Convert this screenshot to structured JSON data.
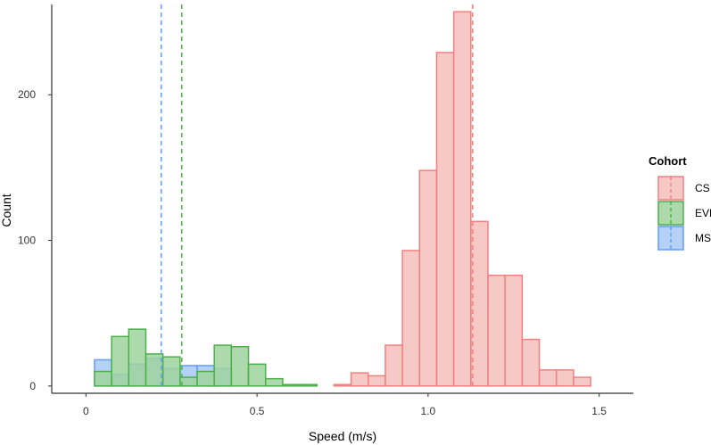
{
  "chart_data": {
    "type": "bar",
    "subtype": "overlaid-histogram",
    "xlabel": "Speed (m/s)",
    "ylabel": "Count",
    "xlim": [
      -0.1,
      1.6
    ],
    "ylim": [
      -5,
      262
    ],
    "xticks": [
      0,
      0.5,
      1,
      1.5
    ],
    "xtick_labels": [
      "0",
      "0.5",
      "1.0",
      "1.5"
    ],
    "yticks": [
      0,
      100,
      200
    ],
    "ytick_labels": [
      "0",
      "100",
      "200"
    ],
    "grid": false,
    "bin_edges": [
      -0.025,
      0.025,
      0.075,
      0.125,
      0.175,
      0.225,
      0.275,
      0.325,
      0.375,
      0.425,
      0.475,
      0.525,
      0.575,
      0.625,
      0.675,
      0.725,
      0.775,
      0.825,
      0.875,
      0.925,
      0.975,
      1.025,
      1.075,
      1.125,
      1.175,
      1.225,
      1.275,
      1.325,
      1.375,
      1.425,
      1.475,
      1.525
    ],
    "series": [
      {
        "name": "MS",
        "color": "#619CFF",
        "fill": "#a9c9f7",
        "counts": [
          0,
          18,
          8,
          15,
          19,
          12,
          14,
          14,
          12,
          0,
          0,
          0,
          0,
          0,
          0,
          0,
          0,
          0,
          0,
          0,
          0,
          0,
          0,
          0,
          0,
          0,
          0,
          0,
          0,
          0
        ],
        "mean": 0.22
      },
      {
        "name": "EVF",
        "color": "#4DAF4A",
        "fill": "#9fd49d",
        "counts": [
          0,
          10,
          34,
          39,
          22,
          20,
          6,
          10,
          28,
          27,
          15,
          5,
          1,
          1,
          0,
          0,
          0,
          0,
          0,
          0,
          0,
          0,
          0,
          0,
          0,
          0,
          0,
          0,
          0,
          0
        ],
        "mean": 0.28
      },
      {
        "name": "CS",
        "color": "#F08080",
        "fill": "#f4c0bd",
        "counts": [
          0,
          0,
          0,
          0,
          0,
          0,
          0,
          0,
          0,
          0,
          0,
          0,
          0,
          0,
          0,
          1,
          9,
          7,
          28,
          93,
          148,
          229,
          257,
          113,
          76,
          76,
          32,
          11,
          11,
          6
        ],
        "mean": 1.13
      }
    ],
    "legend": {
      "title": "Cohort",
      "position": "right",
      "entries": [
        "CS",
        "EVF",
        "MS"
      ]
    }
  }
}
